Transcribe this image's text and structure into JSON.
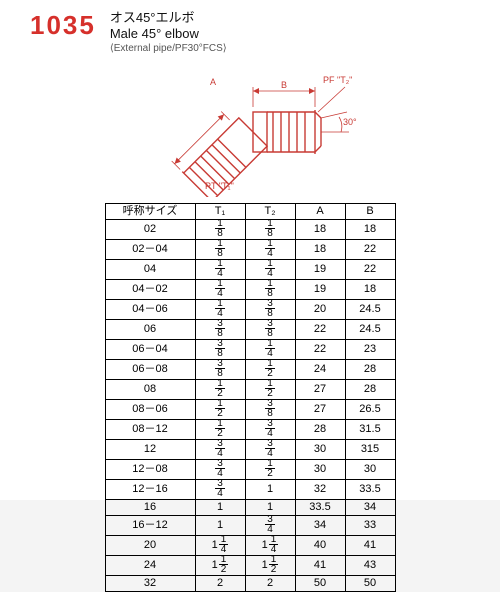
{
  "header": {
    "part_no": "1035",
    "title_jp": "オス45°エルボ",
    "title_en": "Male 45° elbow",
    "subtitle": "⟨External pipe/PF30°FCS⟩"
  },
  "diagram": {
    "label_A": "A",
    "label_B": "B",
    "label_PF": "PF \"T₂\"",
    "label_PT": "PT \"T₁\"",
    "label_angle": "30°",
    "color": "#c83a34"
  },
  "table": {
    "headers": [
      "呼称サイズ",
      "T₁",
      "T₂",
      "A",
      "B"
    ],
    "rows": [
      {
        "size": "02",
        "t1": {
          "n": 1,
          "d": 8
        },
        "t2": {
          "n": 1,
          "d": 8
        },
        "a": "18",
        "b": "18"
      },
      {
        "size": "02－04",
        "t1": {
          "n": 1,
          "d": 8
        },
        "t2": {
          "n": 1,
          "d": 4
        },
        "a": "18",
        "b": "22"
      },
      {
        "size": "04",
        "t1": {
          "n": 1,
          "d": 4
        },
        "t2": {
          "n": 1,
          "d": 4
        },
        "a": "19",
        "b": "22"
      },
      {
        "size": "04－02",
        "t1": {
          "n": 1,
          "d": 4
        },
        "t2": {
          "n": 1,
          "d": 8
        },
        "a": "19",
        "b": "18"
      },
      {
        "size": "04－06",
        "t1": {
          "n": 1,
          "d": 4
        },
        "t2": {
          "n": 3,
          "d": 8
        },
        "a": "20",
        "b": "24.5"
      },
      {
        "size": "06",
        "t1": {
          "n": 3,
          "d": 8
        },
        "t2": {
          "n": 3,
          "d": 8
        },
        "a": "22",
        "b": "24.5"
      },
      {
        "size": "06－04",
        "t1": {
          "n": 3,
          "d": 8
        },
        "t2": {
          "n": 1,
          "d": 4
        },
        "a": "22",
        "b": "23"
      },
      {
        "size": "06－08",
        "t1": {
          "n": 3,
          "d": 8
        },
        "t2": {
          "n": 1,
          "d": 2
        },
        "a": "24",
        "b": "28"
      },
      {
        "size": "08",
        "t1": {
          "n": 1,
          "d": 2
        },
        "t2": {
          "n": 1,
          "d": 2
        },
        "a": "27",
        "b": "28"
      },
      {
        "size": "08－06",
        "t1": {
          "n": 1,
          "d": 2
        },
        "t2": {
          "n": 3,
          "d": 8
        },
        "a": "27",
        "b": "26.5"
      },
      {
        "size": "08－12",
        "t1": {
          "n": 1,
          "d": 2
        },
        "t2": {
          "n": 3,
          "d": 4
        },
        "a": "28",
        "b": "31.5"
      },
      {
        "size": "12",
        "t1": {
          "n": 3,
          "d": 4
        },
        "t2": {
          "n": 3,
          "d": 4
        },
        "a": "30",
        "b": "315"
      },
      {
        "size": "12－08",
        "t1": {
          "n": 3,
          "d": 4
        },
        "t2": {
          "n": 1,
          "d": 2
        },
        "a": "30",
        "b": "30"
      },
      {
        "size": "12－16",
        "t1": {
          "n": 3,
          "d": 4
        },
        "t2": {
          "w": 1
        },
        "a": "32",
        "b": "33.5"
      },
      {
        "size": "16",
        "t1": {
          "w": 1
        },
        "t2": {
          "w": 1
        },
        "a": "33.5",
        "b": "34"
      },
      {
        "size": "16－12",
        "t1": {
          "w": 1
        },
        "t2": {
          "n": 3,
          "d": 4
        },
        "a": "34",
        "b": "33"
      },
      {
        "size": "20",
        "t1": {
          "w": 1,
          "n": 1,
          "d": 4
        },
        "t2": {
          "w": 1,
          "n": 1,
          "d": 4
        },
        "a": "40",
        "b": "41"
      },
      {
        "size": "24",
        "t1": {
          "w": 1,
          "n": 1,
          "d": 2
        },
        "t2": {
          "w": 1,
          "n": 1,
          "d": 2
        },
        "a": "41",
        "b": "43"
      },
      {
        "size": "32",
        "t1": {
          "w": 2
        },
        "t2": {
          "w": 2
        },
        "a": "50",
        "b": "50"
      }
    ]
  }
}
